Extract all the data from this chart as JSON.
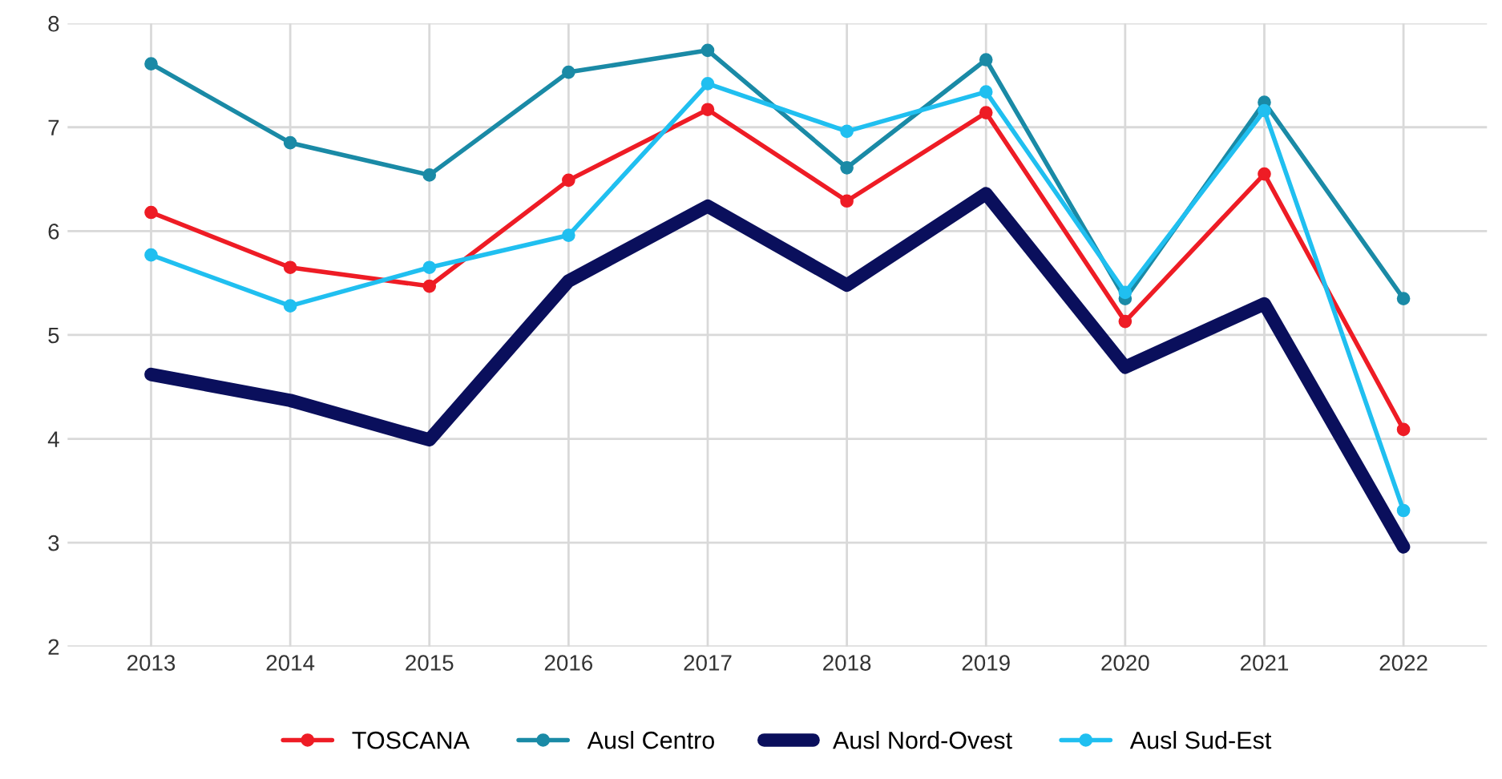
{
  "chart_data": {
    "type": "line",
    "categories": [
      "2013",
      "2014",
      "2015",
      "2016",
      "2017",
      "2018",
      "2019",
      "2020",
      "2021",
      "2022"
    ],
    "series": [
      {
        "name": "TOSCANA",
        "color": "#ee1c25",
        "marker": "circle",
        "values": [
          6.18,
          5.65,
          5.47,
          6.49,
          7.17,
          6.29,
          7.14,
          5.13,
          6.55,
          4.09
        ]
      },
      {
        "name": "Ausl Centro",
        "color": "#1a8aa6",
        "marker": "circle",
        "values": [
          7.61,
          6.85,
          6.54,
          7.53,
          7.74,
          6.61,
          7.65,
          5.35,
          7.24,
          5.35
        ]
      },
      {
        "name": "Ausl Nord-Ovest",
        "color": "#0a0f5c",
        "marker": "none",
        "values": [
          4.62,
          4.37,
          3.99,
          5.52,
          6.24,
          5.48,
          6.36,
          4.69,
          5.3,
          2.96
        ]
      },
      {
        "name": "Ausl Sud-Est",
        "color": "#20bff0",
        "marker": "circle",
        "values": [
          5.77,
          5.28,
          5.65,
          5.96,
          7.42,
          6.96,
          7.34,
          5.41,
          7.16,
          3.31
        ]
      }
    ],
    "ylim": [
      2,
      8
    ],
    "yticks": [
      2,
      3,
      4,
      5,
      6,
      7,
      8
    ],
    "grid": true,
    "legend": "bottom",
    "line_style": "solid"
  }
}
